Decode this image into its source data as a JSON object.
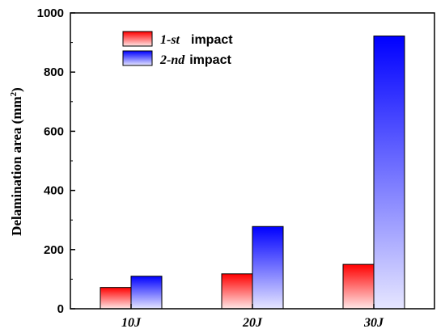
{
  "chart_data": {
    "type": "bar",
    "categories": [
      "10J",
      "20J",
      "30J"
    ],
    "series": [
      {
        "name_italic": "1-st",
        "name_rest": "impact",
        "values": [
          72,
          118,
          150
        ],
        "color_top": "#ff0000",
        "color_bottom": "#ffe6e6"
      },
      {
        "name_italic": "2-nd",
        "name_rest": "impact",
        "values": [
          110,
          278,
          922
        ],
        "color_top": "#0000ff",
        "color_bottom": "#e6e6ff"
      }
    ],
    "ylabel_main": "Delamination area (mm",
    "ylabel_sup": "2",
    "ylabel_close": ")",
    "ylim": [
      0,
      1000
    ],
    "yticks": [
      0,
      200,
      400,
      600,
      800,
      1000
    ],
    "legend_position": "top-left",
    "grid": false
  }
}
